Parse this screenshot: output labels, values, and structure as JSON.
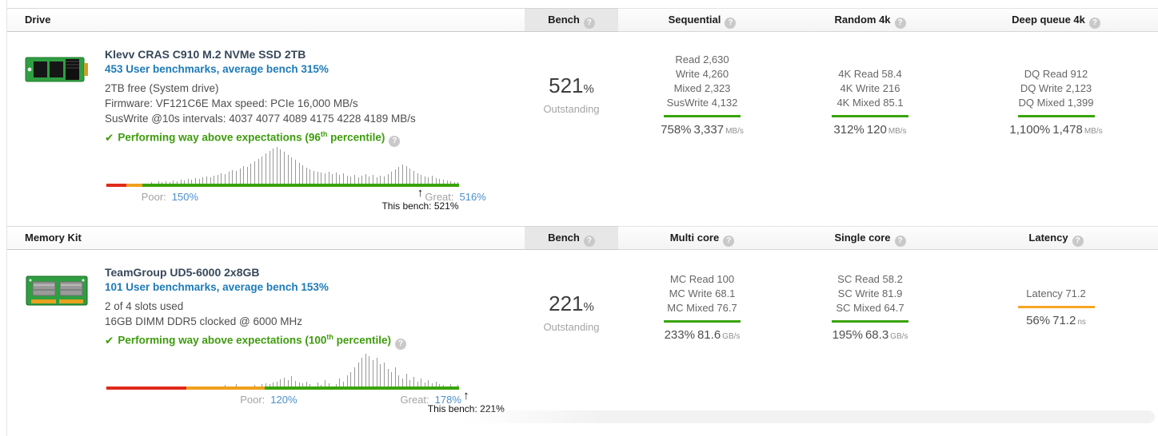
{
  "icons": {
    "help": "?",
    "check": "✔",
    "arrow_up": "↑"
  },
  "colors": {
    "link_blue": "#1d7bb9",
    "title_navy": "#37485a",
    "perf_green": "#3e9c0d",
    "axis_red": "#e02a1c",
    "axis_orange": "#f0a01e",
    "axis_green": "#3aa40a",
    "underline_orange": "#f5a623",
    "value_blue": "#4b8fce"
  },
  "sections": [
    {
      "header": {
        "category": "Drive",
        "bench_label": "Bench",
        "col1": "Sequential",
        "col2": "Random 4k",
        "col3": "Deep queue 4k"
      },
      "product": {
        "title": "Klevv CRAS C910 M.2 NVMe SSD 2TB",
        "benchmarks_link": "453 User benchmarks, average bench 315%",
        "line1": "2TB free (System drive)",
        "line2": "Firmware: VF121C6E Max speed: PCIe 16,000 MB/s",
        "line3": "SusWrite @10s intervals: 4037 4077 4089 4175 4228 4189 MB/s",
        "perf_prefix": "Performing way above expectations (96",
        "perf_sup": "th",
        "perf_suffix": " percentile)"
      },
      "bench": {
        "value": "521",
        "unit": "%",
        "rating": "Outstanding"
      },
      "cols": [
        {
          "lines": [
            "Read 2,630",
            "Write 4,260",
            "Mixed 2,323",
            "SusWrite 4,132"
          ],
          "summary_pct": "758%",
          "summary_value": "3,337",
          "summary_unit": "MB/s"
        },
        {
          "lines": [
            "4K Read 58.4",
            "4K Write 216",
            "4K Mixed 85.1"
          ],
          "summary_pct": "312%",
          "summary_value": "120",
          "summary_unit": "MB/s"
        },
        {
          "lines": [
            "DQ Read 912",
            "DQ Write 2,123",
            "DQ Mixed 1,399"
          ],
          "summary_pct": "1,100%",
          "summary_value": "1,478",
          "summary_unit": "MB/s"
        }
      ],
      "histogram": {
        "bars": [
          0,
          0,
          0,
          0,
          0,
          0,
          0,
          0,
          0,
          0,
          0,
          0,
          2,
          0,
          3,
          2,
          3,
          2,
          4,
          3,
          5,
          4,
          6,
          5,
          7,
          6,
          8,
          9,
          8,
          10,
          11,
          13,
          12,
          15,
          17,
          16,
          19,
          22,
          21,
          25,
          28,
          31,
          34,
          38,
          41,
          44,
          46,
          43,
          40,
          36,
          33,
          30,
          26,
          23,
          20,
          18,
          16,
          15,
          14,
          13,
          15,
          12,
          14,
          11,
          13,
          10,
          9,
          11,
          8,
          10,
          12,
          9,
          11,
          8,
          10,
          9,
          12,
          15,
          18,
          21,
          24,
          22,
          19,
          16,
          13,
          11,
          9,
          8,
          10,
          7,
          6,
          5,
          4,
          3,
          2,
          2
        ],
        "red_width": "5.7%",
        "orange_width": "4.5%",
        "poor_label": "Poor:",
        "poor_value": "150%",
        "poor_left": "18%",
        "great_label": "Great:",
        "great_value": "516%",
        "great_left": "99%",
        "marker_label": "This bench: 521%",
        "marker_left": "89%"
      }
    },
    {
      "header": {
        "category": "Memory Kit",
        "bench_label": "Bench",
        "col1": "Multi core",
        "col2": "Single core",
        "col3": "Latency"
      },
      "product": {
        "title": "TeamGroup UD5-6000 2x8GB",
        "benchmarks_link": "101 User benchmarks, average bench 153%",
        "line1": "2 of 4 slots used",
        "line2": "16GB DIMM DDR5 clocked @ 6000 MHz",
        "perf_prefix": "Performing way above expectations (100",
        "perf_sup": "th",
        "perf_suffix": " percentile)"
      },
      "bench": {
        "value": "221",
        "unit": "%",
        "rating": "Outstanding"
      },
      "cols": [
        {
          "lines": [
            "MC Read 100",
            "MC Write 68.1",
            "MC Mixed 76.7"
          ],
          "summary_pct": "233%",
          "summary_value": "81.6",
          "summary_unit": "GB/s"
        },
        {
          "lines": [
            "SC Read 58.2",
            "SC Write 81.9",
            "SC Mixed 64.7"
          ],
          "summary_pct": "195%",
          "summary_value": "68.3",
          "summary_unit": "GB/s"
        },
        {
          "lines": [
            "Latency 71.2"
          ],
          "summary_pct": "56%",
          "summary_value": "71.2",
          "summary_unit": "ns"
        }
      ],
      "histogram": {
        "bars": [
          0,
          0,
          0,
          0,
          0,
          0,
          0,
          0,
          0,
          0,
          0,
          0,
          0,
          0,
          0,
          0,
          0,
          0,
          0,
          0,
          0,
          0,
          0,
          0,
          0,
          0,
          0,
          0,
          0,
          0,
          0,
          0,
          2,
          0,
          0,
          3,
          0,
          0,
          0,
          0,
          2,
          0,
          3,
          4,
          3,
          5,
          6,
          9,
          11,
          8,
          13,
          7,
          5,
          4,
          6,
          3,
          0,
          5,
          2,
          8,
          4,
          0,
          3,
          10,
          6,
          14,
          18,
          24,
          30,
          36,
          41,
          38,
          33,
          36,
          28,
          30,
          22,
          18,
          24,
          14,
          10,
          16,
          8,
          12,
          6,
          10,
          5,
          8,
          4,
          6,
          3,
          2,
          0,
          3,
          0,
          2
        ],
        "red_width": "22.7%",
        "orange_width": "22.2%",
        "poor_label": "Poor:",
        "poor_value": "120%",
        "poor_left": "46%",
        "great_label": "Great:",
        "great_value": "178%",
        "great_left": "92%",
        "marker_label": "This bench: 221%",
        "marker_left": "102%"
      }
    }
  ]
}
